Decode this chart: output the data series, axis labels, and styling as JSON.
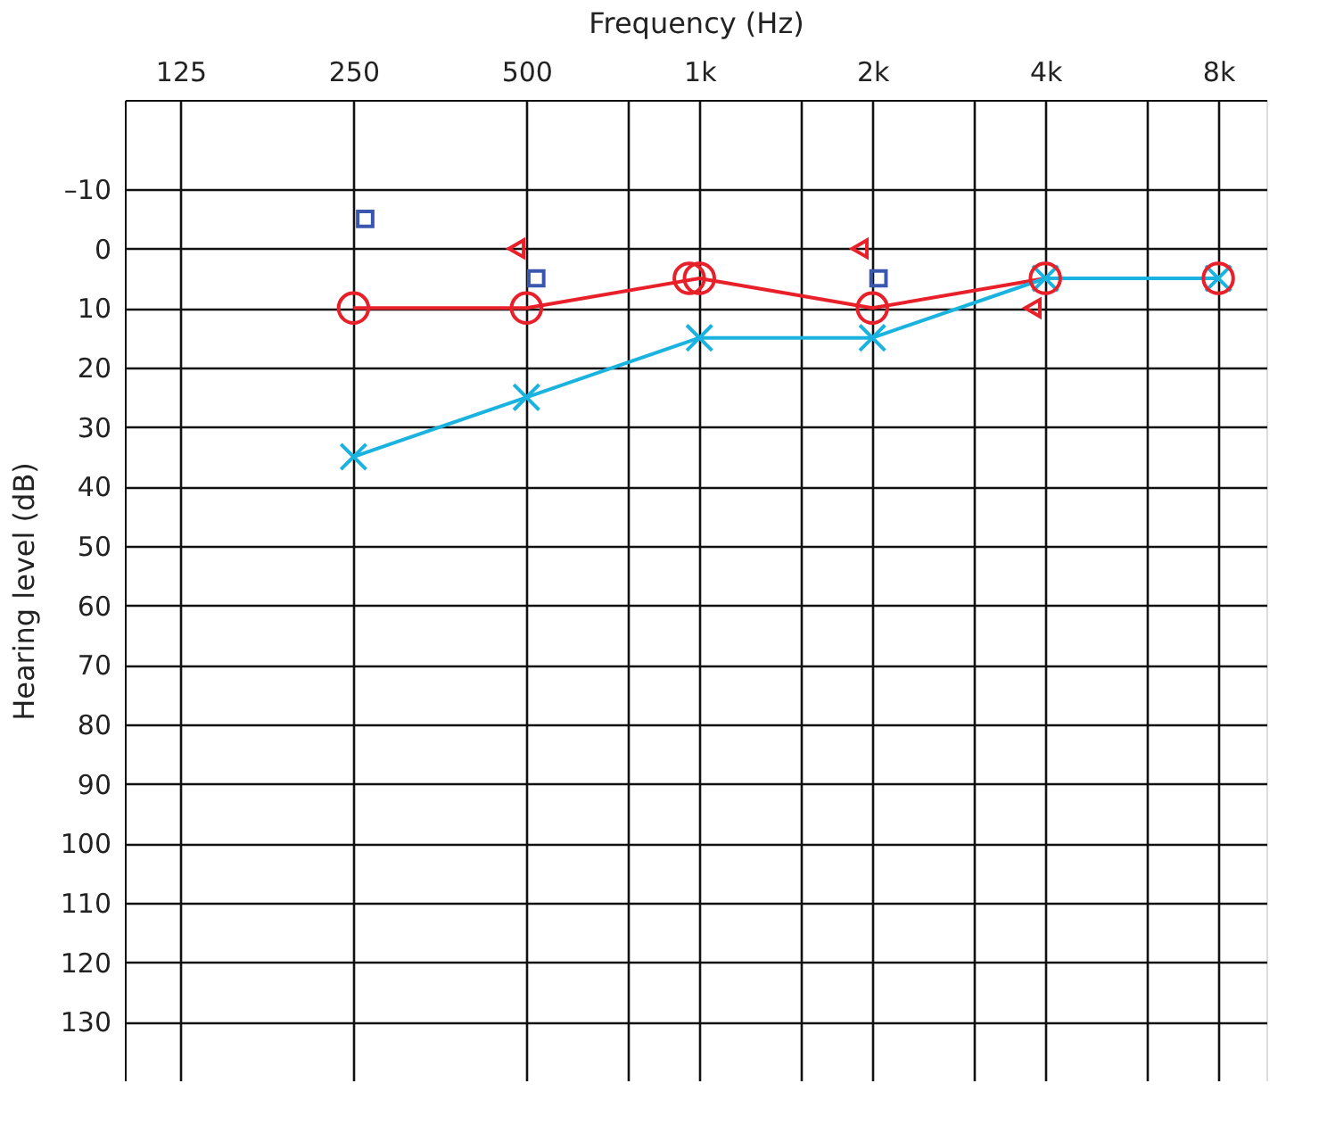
{
  "chart_data": {
    "type": "line",
    "xlabel": "Frequency (Hz)",
    "ylabel": "Hearing level (dB)",
    "log": "x",
    "grid": true,
    "xlim": [
      100,
      9700
    ],
    "ylim": [
      140,
      -25
    ],
    "xticks": [
      125,
      250,
      500,
      {
        "value": 750,
        "label": null
      },
      {
        "value": 1000,
        "label": "1k"
      },
      {
        "value": 1500,
        "label": null
      },
      {
        "value": 2000,
        "label": "2k"
      },
      {
        "value": 3000,
        "label": null
      },
      {
        "value": 4000,
        "label": "4k"
      },
      {
        "value": 6000,
        "label": null
      },
      {
        "value": 8000,
        "label": "8k"
      }
    ],
    "yticks": [
      {
        "value": -10,
        "label": "–10"
      },
      0,
      10,
      20,
      30,
      40,
      50,
      60,
      70,
      80,
      90,
      100,
      110,
      120,
      130
    ],
    "series": [
      {
        "marker": "circle",
        "color": "#e8202a",
        "x": [
          250,
          500,
          1000,
          2000,
          4000,
          8000
        ],
        "values": [
          10,
          10,
          5,
          10,
          5,
          5
        ]
      },
      {
        "type": "scatter",
        "marker": "circle",
        "color": "#e8202a",
        "x": [
          960
        ],
        "values": [
          5
        ]
      },
      {
        "marker": "cross",
        "color": "#1ab3e0",
        "x": [
          250,
          500,
          1000,
          2000,
          4000,
          8000
        ],
        "values": [
          35,
          25,
          15,
          15,
          5,
          5
        ]
      },
      {
        "type": "scatter",
        "marker": "triangle",
        "color": "#e8202a",
        "x": [
          480,
          1900,
          3800
        ],
        "values": [
          0,
          0,
          10
        ]
      },
      {
        "type": "scatter",
        "marker": "square",
        "color": "#3a57b0",
        "x": [
          262,
          520,
          2050
        ],
        "values": [
          -5,
          5,
          5
        ]
      }
    ]
  }
}
